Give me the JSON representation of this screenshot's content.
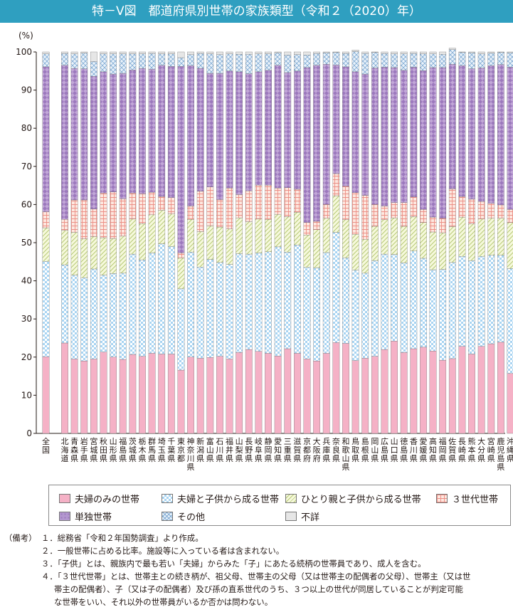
{
  "title": "特－Ⅴ図　都道府県別世帯の家族類型（令和２（2020）年）",
  "chart_data": {
    "type": "bar",
    "stacked": true,
    "y_unit": "(%)",
    "ylim": [
      0,
      100
    ],
    "yticks": [
      0,
      10,
      20,
      30,
      40,
      50,
      60,
      70,
      80,
      90,
      100
    ],
    "categories": [
      "全国",
      "北海道",
      "青森県",
      "岩手県",
      "宮城県",
      "秋田県",
      "山形県",
      "福島県",
      "茨城県",
      "栃木県",
      "群馬県",
      "埼玉県",
      "千葉県",
      "東京都",
      "神奈川県",
      "新潟県",
      "富山県",
      "石川県",
      "福井県",
      "山梨県",
      "長野県",
      "岐阜県",
      "静岡県",
      "愛知県",
      "三重県",
      "滋賀県",
      "京都府",
      "大阪府",
      "兵庫県",
      "奈良県",
      "和歌山県",
      "鳥取県",
      "島根県",
      "岡山県",
      "広島県",
      "山口県",
      "徳島県",
      "香川県",
      "愛媛県",
      "高知県",
      "福岡県",
      "佐賀県",
      "長崎県",
      "熊本県",
      "大分県",
      "宮崎県",
      "鹿児島県",
      "沖縄県"
    ],
    "series": [
      {
        "name": "夫婦のみの世帯",
        "color": "#f5b1c6",
        "values": [
          20.1,
          23.7,
          19.5,
          19.0,
          19.5,
          21.3,
          20.0,
          19.4,
          20.7,
          20.2,
          21.0,
          20.8,
          20.8,
          16.6,
          20.0,
          19.7,
          19.9,
          20.2,
          19.5,
          21.2,
          22.0,
          21.5,
          21.0,
          20.3,
          22.2,
          21.0,
          19.5,
          19.0,
          21.0,
          23.8,
          23.6,
          19.1,
          19.7,
          20.2,
          22.0,
          24.2,
          21.2,
          22.2,
          22.6,
          21.6,
          19.2,
          19.6,
          22.8,
          20.8,
          22.8,
          23.5,
          23.9,
          15.7
        ]
      },
      {
        "name": "夫婦と子供から成る世帯",
        "color": "#a8d4f2",
        "values": [
          25.0,
          20.5,
          22.0,
          21.8,
          23.6,
          20.2,
          21.9,
          22.6,
          26.3,
          25.3,
          26.3,
          28.9,
          28.2,
          21.3,
          27.5,
          23.9,
          25.7,
          24.6,
          24.8,
          25.9,
          25.0,
          25.8,
          26.6,
          28.6,
          25.3,
          28.4,
          24.0,
          24.4,
          26.4,
          28.9,
          22.4,
          23.7,
          22.3,
          25.1,
          25.0,
          22.7,
          23.5,
          25.6,
          23.3,
          21.3,
          23.8,
          25.2,
          23.6,
          24.5,
          23.6,
          23.2,
          22.8,
          27.5
        ]
      },
      {
        "name": "ひとり親と子供から成る世帯",
        "color": "#e9f2b7",
        "values": [
          8.8,
          9.0,
          11.2,
          10.2,
          8.5,
          9.8,
          9.2,
          9.7,
          9.2,
          9.5,
          10.0,
          8.8,
          8.5,
          8.1,
          8.6,
          9.3,
          8.8,
          9.3,
          9.3,
          9.4,
          8.5,
          8.9,
          8.5,
          8.5,
          9.3,
          8.6,
          8.5,
          10.0,
          9.0,
          9.6,
          10.0,
          9.4,
          8.9,
          9.0,
          9.0,
          9.6,
          9.6,
          9.0,
          9.4,
          9.9,
          9.6,
          9.4,
          10.3,
          9.6,
          9.8,
          9.7,
          9.7,
          12.1
        ]
      },
      {
        "name": "３世代世帯",
        "color": "#fbd7ca",
        "values": [
          4.2,
          2.9,
          8.5,
          10.2,
          7.2,
          11.7,
          12.2,
          9.8,
          6.8,
          7.8,
          5.9,
          3.6,
          4.3,
          1.3,
          3.5,
          10.6,
          10.2,
          7.2,
          10.7,
          6.1,
          8.1,
          8.9,
          9.0,
          6.9,
          7.6,
          6.0,
          3.3,
          2.2,
          3.6,
          5.8,
          8.8,
          10.9,
          11.5,
          5.7,
          3.6,
          4.0,
          6.2,
          5.2,
          3.4,
          3.9,
          3.8,
          9.9,
          5.4,
          6.5,
          4.6,
          3.9,
          3.5,
          3.4
        ]
      },
      {
        "name": "単独世帯",
        "color": "#bca3d4",
        "values": [
          38.0,
          40.4,
          34.5,
          34.4,
          34.8,
          31.8,
          30.9,
          32.9,
          32.3,
          32.9,
          32.3,
          34.4,
          34.4,
          48.9,
          36.8,
          32.2,
          29.8,
          33.1,
          30.7,
          32.2,
          30.7,
          29.7,
          30.1,
          32.2,
          30.2,
          31.0,
          40.6,
          40.9,
          36.8,
          28.5,
          31.3,
          31.7,
          31.8,
          35.8,
          36.4,
          35.4,
          34.7,
          34.0,
          36.4,
          39.2,
          39.5,
          32.7,
          34.3,
          34.2,
          35.0,
          36.1,
          36.8,
          37.3
        ]
      },
      {
        "name": "その他",
        "color": "#cfe1f4",
        "values": [
          3.4,
          3.1,
          3.8,
          4.1,
          3.9,
          4.7,
          5.3,
          5.1,
          4.2,
          3.8,
          4.1,
          3.0,
          3.3,
          2.3,
          2.9,
          3.9,
          5.1,
          4.9,
          4.5,
          4.6,
          5.1,
          4.7,
          4.3,
          3.3,
          4.6,
          4.3,
          3.3,
          3.1,
          3.0,
          3.3,
          3.5,
          5.3,
          5.4,
          4.1,
          3.6,
          3.6,
          4.3,
          3.6,
          4.4,
          3.6,
          3.5,
          3.8,
          3.5,
          4.2,
          3.7,
          3.3,
          3.2,
          3.8
        ]
      },
      {
        "name": "不詳",
        "color": "#e6e6e6",
        "values": [
          0.5,
          0.4,
          0.5,
          0.3,
          2.5,
          0.5,
          0.5,
          0.5,
          0.5,
          0.5,
          0.4,
          0.5,
          0.5,
          1.5,
          0.7,
          0.4,
          0.5,
          0.7,
          0.5,
          0.6,
          0.6,
          0.5,
          0.5,
          0.2,
          0.8,
          0.7,
          0.8,
          0.4,
          0.2,
          0.1,
          0.4,
          0.4,
          0.4,
          0.1,
          0.4,
          0.5,
          0.5,
          0.4,
          0.5,
          0.5,
          0.6,
          0.4,
          0.1,
          0.2,
          0.5,
          0.3,
          0.1,
          0.2
        ]
      }
    ]
  },
  "legend": [
    {
      "label": "夫婦のみの世帯",
      "color": "#f5b1c6"
    },
    {
      "label": "夫婦と子供から成る世帯",
      "color": "#a8d4f2"
    },
    {
      "label": "ひとり親と子供から成る世帯",
      "color": "#e9f2b7"
    },
    {
      "label": "３世代世帯",
      "color": "#fbd7ca"
    },
    {
      "label": "単独世帯",
      "color": "#bca3d4"
    },
    {
      "label": "その他",
      "color": "#cfe1f4"
    },
    {
      "label": "不詳",
      "color": "#e6e6e6"
    }
  ],
  "notes": {
    "heading": "（備考）",
    "items": [
      "１．総務省「令和２年国勢調査」より作成。",
      "２．一般世帯に占める比率。施設等に入っている者は含まれない。",
      "３．「子供」とは、親族内で最も若い「夫婦」からみた「子」にあたる続柄の世帯員であり、成人を含む。",
      "４．「３世代世帯」とは、世帯主との続き柄が、祖父母、世帯主の父母（又は世帯主の配偶者の父母）、世帯主（又は世",
      "帯主の配偶者）、子（又は子の配偶者）及び孫の直系世代のうち、３つ以上の世代が同居していることが判定可能",
      "な世帯をいい、それ以外の世帯員がいるか否かは問わない。"
    ]
  }
}
